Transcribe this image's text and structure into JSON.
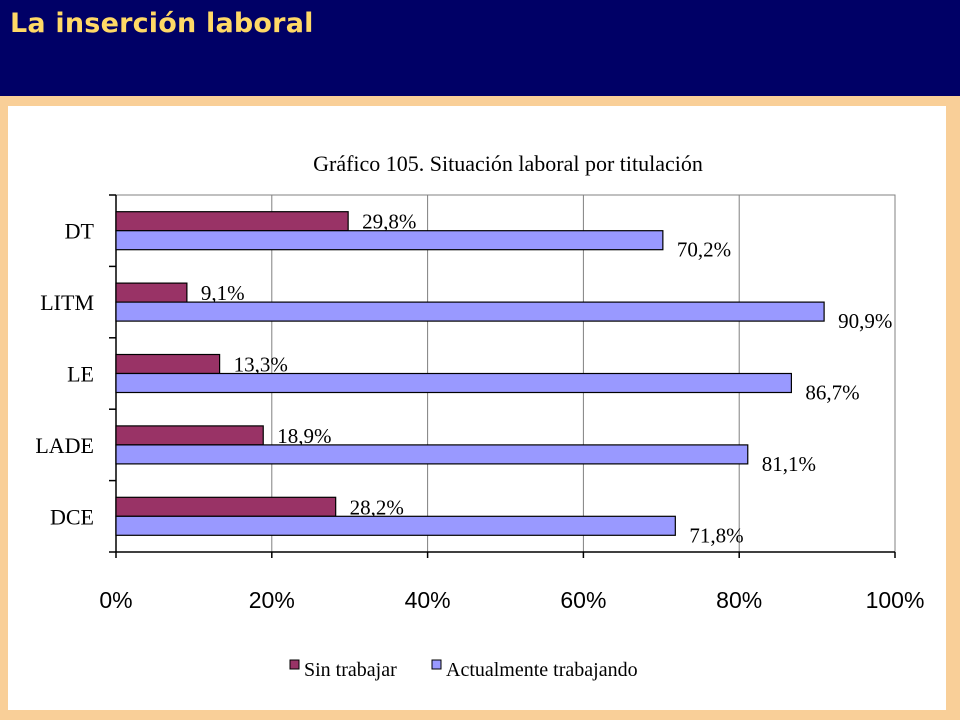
{
  "slide": {
    "title": "La inserción laboral"
  },
  "chart_data": {
    "type": "bar",
    "orientation": "horizontal",
    "title": "Gráfico 105. Situación laboral por titulación",
    "categories": [
      "DT",
      "LITM",
      "LE",
      "LADE",
      "DCE"
    ],
    "series": [
      {
        "name": "Sin trabajar",
        "color": "#993366",
        "values": [
          29.8,
          9.1,
          13.3,
          18.9,
          28.2
        ],
        "labels": [
          "29,8%",
          "9,1%",
          "13,3%",
          "18,9%",
          "28,2%"
        ]
      },
      {
        "name": "Actualmente trabajando",
        "color": "#9999ff",
        "values": [
          70.2,
          90.9,
          86.7,
          81.1,
          71.8
        ],
        "labels": [
          "70,2%",
          "90,9%",
          "86,7%",
          "81,1%",
          "71,8%"
        ]
      }
    ],
    "xlim": [
      0,
      100
    ],
    "x_ticks": [
      "0%",
      "20%",
      "40%",
      "60%",
      "80%",
      "100%"
    ],
    "grid": "vertical",
    "legend": "bottom"
  }
}
